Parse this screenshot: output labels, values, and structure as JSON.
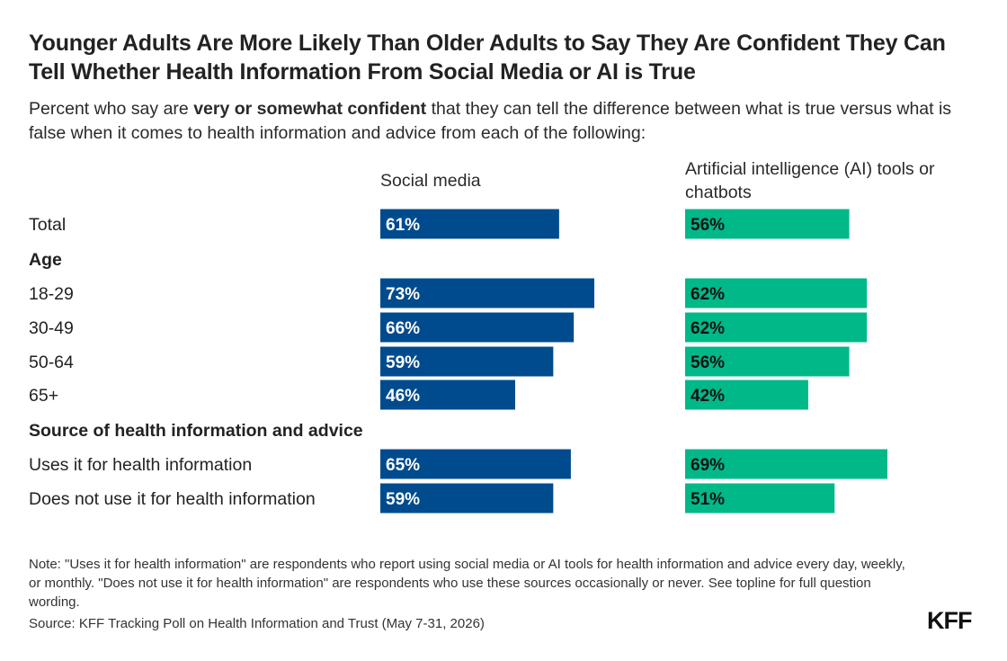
{
  "title": "Younger Adults Are More Likely Than Older Adults to Say They Are Confident They Can Tell Whether Health Information From Social Media or AI is True",
  "subtitle": {
    "before": "Percent who say are ",
    "emphasis": "very or somewhat confident",
    "after": " that they can tell the difference between what is true versus what is false when it comes to health information and advice from each of the following:"
  },
  "colors": {
    "social_media": "#004b8d",
    "ai": "#00b888",
    "label_on_social": "#ffffff",
    "label_on_ai": "#111111"
  },
  "chart_data": {
    "type": "bar",
    "orientation": "horizontal",
    "value_unit": "%",
    "xlim": [
      0,
      100
    ],
    "series": [
      {
        "name": "Social media",
        "color": "#004b8d"
      },
      {
        "name": "Artificial intelligence (AI) tools or chatbots",
        "color": "#00b888"
      }
    ],
    "rows": [
      {
        "label": "Total",
        "kind": "category",
        "values": [
          61,
          56
        ]
      },
      {
        "label": "Age",
        "kind": "group-header"
      },
      {
        "label": "18-29",
        "kind": "category",
        "values": [
          73,
          62
        ]
      },
      {
        "label": "30-49",
        "kind": "category",
        "values": [
          66,
          62
        ]
      },
      {
        "label": "50-64",
        "kind": "category",
        "values": [
          59,
          56
        ]
      },
      {
        "label": "65+",
        "kind": "category",
        "values": [
          46,
          42
        ]
      },
      {
        "label": "Source of health information and advice",
        "kind": "group-header"
      },
      {
        "label": "Uses it for health information",
        "kind": "category",
        "values": [
          65,
          69
        ]
      },
      {
        "label": "Does not use it for health information",
        "kind": "category",
        "values": [
          59,
          51
        ]
      }
    ]
  },
  "note": "Note: \"Uses it for health information\" are respondents who report using social media or AI tools for health information and advice every day, weekly, or monthly. \"Does not use it for health information\" are respondents who use these sources occasionally or never. See topline for full question wording.",
  "source": "Source: KFF Tracking Poll on Health Information and Trust (May 7-31, 2026)",
  "logo_text": "KFF"
}
